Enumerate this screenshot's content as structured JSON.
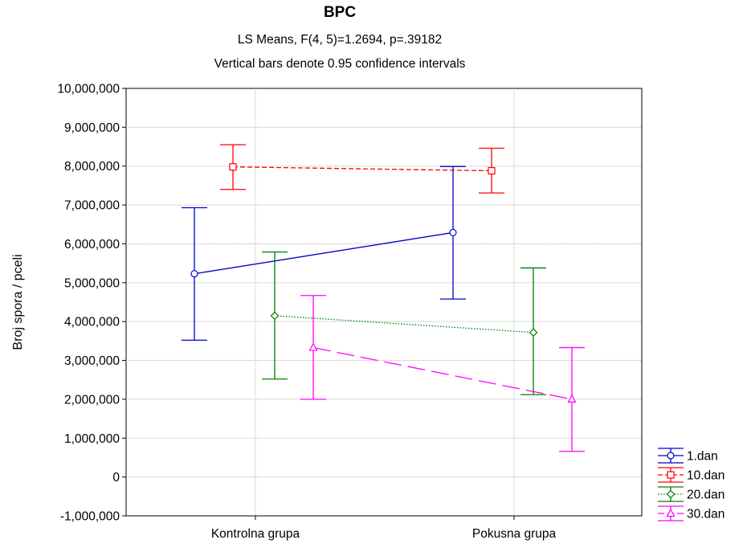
{
  "chart_data": {
    "type": "line",
    "title": "BPC",
    "subtitle_lines": [
      "LS Means, F(4, 5)=1.2694, p=.39182",
      "Vertical bars denote 0.95 confidence intervals"
    ],
    "xlabel": "",
    "ylabel": "Broj spora / pceli",
    "categories": [
      "Kontrolna grupa",
      "Pokusna grupa"
    ],
    "ylim": [
      -1000000,
      10000000
    ],
    "y_ticks": [
      -1000000,
      0,
      1000000,
      2000000,
      3000000,
      4000000,
      5000000,
      6000000,
      7000000,
      8000000,
      9000000,
      10000000
    ],
    "y_tick_labels": [
      "-1,000,000",
      "0",
      "1,000,000",
      "2,000,000",
      "3,000,000",
      "4,000,000",
      "5,000,000",
      "6,000,000",
      "7,000,000",
      "8,000,000",
      "9,000,000",
      "10,000,000"
    ],
    "grid": true,
    "legend_position": "bottom-right",
    "series": [
      {
        "name": "1.dan",
        "color": "#0000cc",
        "marker": "circle",
        "line_style": "solid",
        "values": [
          5230000,
          6290000
        ],
        "ci_low": [
          3520000,
          4580000
        ],
        "ci_high": [
          6930000,
          7990000
        ]
      },
      {
        "name": "10.dan",
        "color": "#ff0000",
        "marker": "square",
        "line_style": "dashed",
        "values": [
          7980000,
          7880000
        ],
        "ci_low": [
          7400000,
          7310000
        ],
        "ci_high": [
          8550000,
          8460000
        ]
      },
      {
        "name": "20.dan",
        "color": "#008000",
        "marker": "diamond",
        "line_style": "dotted",
        "values": [
          4150000,
          3720000
        ],
        "ci_low": [
          2520000,
          2120000
        ],
        "ci_high": [
          5790000,
          5380000
        ]
      },
      {
        "name": "30.dan",
        "color": "#ff00ff",
        "marker": "triangle",
        "line_style": "longdash",
        "values": [
          3330000,
          2000000
        ],
        "ci_low": [
          2000000,
          660000
        ],
        "ci_high": [
          4670000,
          3330000
        ]
      }
    ]
  }
}
